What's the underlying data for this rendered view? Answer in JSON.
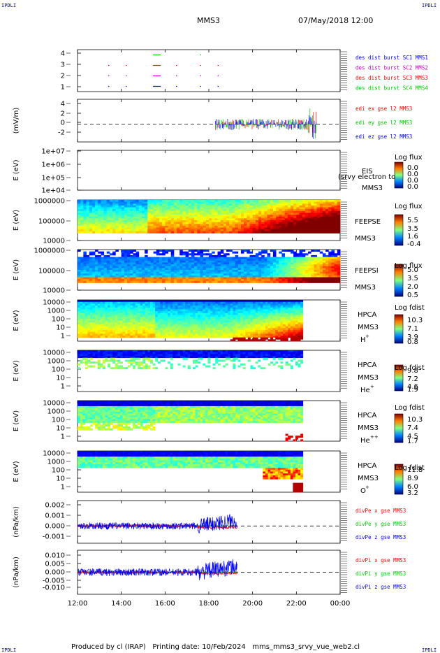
{
  "header": {
    "corner_label": "IPDLI",
    "spacecraft": "MMS3",
    "datetime": "07/May/2018 12:00"
  },
  "footer": {
    "producer": "Produced by cl (IRAP)",
    "printing": "Printing date: 10/Feb/2024",
    "product": "mms_mms3_srvy_vue_web2.cl"
  },
  "time_axis": {
    "ticks": [
      "12:00",
      "14:00",
      "16:00",
      "18:00",
      "20:00",
      "22:00",
      "00:00"
    ],
    "range_hours": [
      12,
      24
    ]
  },
  "colors": {
    "mms1": "#0000ff",
    "mms2": "#cc00cc",
    "mms3": "#ff0000",
    "mms4": "#00cc00",
    "label_blue": "#00008b"
  },
  "chart_data": [
    {
      "type": "scatter",
      "panel": "burst",
      "ylabel": "",
      "yticks": [
        "4",
        "3",
        "2",
        "1"
      ],
      "ylim": [
        0.5,
        4.5
      ],
      "series": [
        {
          "name": "des dist burst SC1 MMS1",
          "level": 1,
          "color": "#0000ff",
          "segments": [
            [
              13.4,
              13.45
            ],
            [
              14.2,
              14.25
            ],
            [
              15.45,
              15.8
            ],
            [
              16.5,
              16.55
            ],
            [
              17.6,
              17.65
            ],
            [
              18.4,
              18.45
            ]
          ]
        },
        {
          "name": "des dist burst SC2 MMS2",
          "level": 2,
          "color": "#cc00cc",
          "segments": [
            [
              13.4,
              13.45
            ],
            [
              14.2,
              14.25
            ],
            [
              15.45,
              15.8
            ],
            [
              16.5,
              16.55
            ],
            [
              17.6,
              17.65
            ],
            [
              18.4,
              18.45
            ]
          ]
        },
        {
          "name": "des dist burst SC3 MMS3",
          "level": 3,
          "color": "#ff0000",
          "segments": [
            [
              13.4,
              13.45
            ],
            [
              14.2,
              14.25
            ],
            [
              15.45,
              15.8
            ],
            [
              16.5,
              16.55
            ],
            [
              17.6,
              17.65
            ],
            [
              18.4,
              18.45
            ]
          ]
        },
        {
          "name": "des dist burst SC4 MMS4",
          "level": 4,
          "color": "#00cc00",
          "segments": [
            [
              15.45,
              15.8
            ],
            [
              17.6,
              17.65
            ]
          ]
        }
      ]
    },
    {
      "type": "line",
      "panel": "edi",
      "ylabel": "(mV/m)",
      "yticks": [
        "4",
        "2",
        "0",
        "-2"
      ],
      "ylim": [
        -3.5,
        5
      ],
      "data_window": [
        18.3,
        22.9
      ],
      "series": [
        {
          "name": "edi ex gse l2 MMS3",
          "color": "#ff0000"
        },
        {
          "name": "edi ey gse l2 MMS3",
          "color": "#00cc00"
        },
        {
          "name": "edi ez gse l2 MMS3",
          "color": "#0000ff"
        }
      ]
    },
    {
      "type": "heatmap",
      "panel": "eis",
      "ylabel": "E (eV)",
      "yticks": [
        "1e+07",
        "1e+06",
        "1e+05",
        "1e+04"
      ],
      "instrument": "EIS",
      "sc": "MMS3",
      "overlay": "(srvy electron to",
      "colorbar_title": "Log flux",
      "colorbar_ticks": [
        "0.0",
        "0.0",
        "0.0",
        "0.0"
      ]
    },
    {
      "type": "heatmap",
      "panel": "feepse",
      "ylabel": "E (eV)",
      "yticks": [
        "1000000",
        "100000",
        "10000"
      ],
      "instrument": "FEEPSE",
      "sc": "MMS3",
      "colorbar_title": "Log flux",
      "colorbar_ticks": [
        "5.5",
        "3.5",
        "1.6",
        "-0.4"
      ],
      "data_window": [
        12,
        24
      ]
    },
    {
      "type": "heatmap",
      "panel": "feepsi",
      "ylabel": "E (eV)",
      "yticks": [
        "1000000",
        "100000",
        "10000"
      ],
      "instrument": "FEEPSI",
      "sc": "MMS3",
      "colorbar_title": "Log flux",
      "colorbar_ticks": [
        "5.0",
        "3.5",
        "2.0",
        "0.5"
      ],
      "data_window": [
        12,
        24
      ]
    },
    {
      "type": "heatmap",
      "panel": "hpca_h",
      "ylabel": "E (eV)",
      "yticks": [
        "10000",
        "1000",
        "100",
        "10",
        "1"
      ],
      "instrument": "HPCA",
      "sc": "MMS3",
      "species": "H",
      "charge": "+",
      "colorbar_title": "Log fdist",
      "colorbar_ticks": [
        "10.3",
        "7.1",
        "3.9",
        "0.8"
      ],
      "data_window": [
        12,
        22.3
      ]
    },
    {
      "type": "heatmap",
      "panel": "hpca_he",
      "ylabel": "E (eV)",
      "yticks": [
        "10000",
        "1000",
        "100",
        "10",
        "1"
      ],
      "instrument": "HPCA",
      "sc": "MMS3",
      "species": "He",
      "charge": "+",
      "colorbar_title": "Log fdist",
      "colorbar_ticks": [
        "9.8",
        "7.2",
        "4.6",
        "1.9"
      ],
      "data_window": [
        12,
        22.3
      ]
    },
    {
      "type": "heatmap",
      "panel": "hpca_hepp",
      "ylabel": "E (eV)",
      "yticks": [
        "10000",
        "1000",
        "100",
        "10",
        "1"
      ],
      "instrument": "HPCA",
      "sc": "MMS3",
      "species": "He",
      "charge": "++",
      "colorbar_title": "Log fdist",
      "colorbar_ticks": [
        "10.3",
        "7.4",
        "4.5",
        "1.7"
      ],
      "data_window": [
        12,
        22.3
      ]
    },
    {
      "type": "heatmap",
      "panel": "hpca_o",
      "ylabel": "E (eV)",
      "yticks": [
        "10000",
        "1000",
        "100",
        "10",
        "1"
      ],
      "instrument": "HPCA",
      "sc": "MMS3",
      "species": "O",
      "charge": "+",
      "colorbar_title": "Log fdist",
      "colorbar_ticks": [
        "11.8",
        "8.9",
        "6.0",
        "3.2"
      ],
      "data_window": [
        12,
        22.3
      ]
    },
    {
      "type": "line",
      "panel": "divpe",
      "ylabel": "(nPa/km)",
      "yticks": [
        "0.002",
        "0.001",
        "0.000",
        "-0.001"
      ],
      "ylim": [
        -0.0017,
        0.0025
      ],
      "data_window": [
        12,
        19.3
      ],
      "series": [
        {
          "name": "divPe x gse MMS3",
          "color": "#ff0000"
        },
        {
          "name": "divPe y gse MMS3",
          "color": "#00cc00"
        },
        {
          "name": "divPe z gse MMS3",
          "color": "#0000ff"
        }
      ]
    },
    {
      "type": "line",
      "panel": "divpi",
      "ylabel": "(nPa/km)",
      "yticks": [
        "0.010",
        "0.005",
        "0.000",
        "-0.005",
        "-0.010"
      ],
      "ylim": [
        -0.013,
        0.013
      ],
      "data_window": [
        12,
        19.3
      ],
      "series": [
        {
          "name": "divPi x gse MMS3",
          "color": "#ff0000"
        },
        {
          "name": "divPi y gse MMS3",
          "color": "#00cc00"
        },
        {
          "name": "divPi z gse MMS3",
          "color": "#0000ff"
        }
      ]
    }
  ]
}
